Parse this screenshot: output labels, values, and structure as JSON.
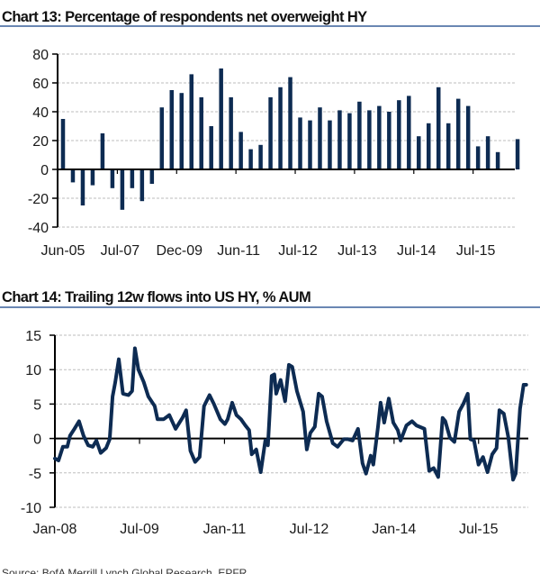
{
  "source": "Source: BofA Merrill Lynch Global Research, EPFR",
  "colors": {
    "series": "#0d2b52",
    "title_rule": "#6a87b3",
    "grid": "#bdbdbd",
    "axis": "#000000"
  },
  "chart_data": [
    {
      "type": "bar",
      "title": "Chart 13: Percentage of respondents net overweight HY",
      "xlabel": "",
      "ylabel": "",
      "ylim": [
        -40,
        80
      ],
      "yticks": [
        80,
        60,
        40,
        20,
        0,
        -20,
        -40
      ],
      "x_tick_labels": [
        "Jun-05",
        "Jul-07",
        "Dec-09",
        "Jun-11",
        "Jul-12",
        "Jul-13",
        "Jul-14",
        "Jul-15"
      ],
      "grid": "horizontal dashed",
      "values": [
        35,
        -9,
        -25,
        -11,
        25,
        -13,
        -28,
        -13,
        -22,
        -10,
        43,
        55,
        53,
        66,
        50,
        30,
        70,
        50,
        26,
        14,
        17,
        50,
        57,
        64,
        36,
        34,
        43,
        34,
        41,
        39,
        47,
        41,
        44,
        40,
        48,
        51,
        23,
        32,
        57,
        32,
        49,
        44,
        16,
        23,
        12,
        null,
        21
      ]
    },
    {
      "type": "line",
      "title": "Chart 14: Trailing 12w flows into US HY, % AUM",
      "xlabel": "",
      "ylabel": "",
      "ylim": [
        -10,
        15
      ],
      "yticks": [
        15,
        10,
        5,
        0,
        -5,
        -10
      ],
      "x_tick_labels": [
        "Jan-08",
        "Jul-09",
        "Jan-11",
        "Jul-12",
        "Jan-14",
        "Jul-15"
      ],
      "x_tick_dates": [
        "2008-01-01",
        "2009-07-01",
        "2011-01-01",
        "2012-07-01",
        "2014-01-01",
        "2015-07-01"
      ],
      "grid": "horizontal dashed",
      "points": [
        [
          "2008-01-01",
          -2.9
        ],
        [
          "2008-01-24",
          -3.2
        ],
        [
          "2008-02-22",
          -1.2
        ],
        [
          "2008-03-21",
          -1.2
        ],
        [
          "2008-04-08",
          0.4
        ],
        [
          "2008-05-06",
          1.4
        ],
        [
          "2008-06-05",
          2.5
        ],
        [
          "2008-07-04",
          0.4
        ],
        [
          "2008-08-03",
          -1.0
        ],
        [
          "2008-09-02",
          -1.2
        ],
        [
          "2008-09-25",
          -0.3
        ],
        [
          "2008-10-23",
          -2.1
        ],
        [
          "2008-11-27",
          -1.4
        ],
        [
          "2008-12-20",
          -0.1
        ],
        [
          "2009-01-08",
          6.1
        ],
        [
          "2009-01-25",
          8.2
        ],
        [
          "2009-02-17",
          11.5
        ],
        [
          "2009-03-16",
          6.5
        ],
        [
          "2009-04-20",
          6.3
        ],
        [
          "2009-05-14",
          6.9
        ],
        [
          "2009-06-01",
          13.1
        ],
        [
          "2009-06-24",
          10.0
        ],
        [
          "2009-07-28",
          8.2
        ],
        [
          "2009-08-27",
          6.1
        ],
        [
          "2009-10-07",
          4.7
        ],
        [
          "2009-10-25",
          2.8
        ],
        [
          "2009-12-04",
          2.8
        ],
        [
          "2010-01-09",
          3.4
        ],
        [
          "2010-02-19",
          1.4
        ],
        [
          "2010-04-04",
          3.0
        ],
        [
          "2010-04-28",
          4.1
        ],
        [
          "2010-05-26",
          -1.8
        ],
        [
          "2010-06-25",
          -3.4
        ],
        [
          "2010-07-24",
          -2.7
        ],
        [
          "2010-08-22",
          4.7
        ],
        [
          "2010-09-26",
          6.3
        ],
        [
          "2010-10-25",
          5.0
        ],
        [
          "2010-12-05",
          2.8
        ],
        [
          "2011-01-04",
          2.1
        ],
        [
          "2011-01-22",
          2.8
        ],
        [
          "2011-02-20",
          5.2
        ],
        [
          "2011-03-19",
          3.4
        ],
        [
          "2011-04-17",
          2.8
        ],
        [
          "2011-05-16",
          1.9
        ],
        [
          "2011-06-09",
          1.2
        ],
        [
          "2011-06-26",
          -2.3
        ],
        [
          "2011-07-25",
          -1.6
        ],
        [
          "2011-08-23",
          -4.9
        ],
        [
          "2011-09-22",
          -0.3
        ],
        [
          "2011-10-09",
          -1.0
        ],
        [
          "2011-11-02",
          9.1
        ],
        [
          "2011-11-19",
          9.3
        ],
        [
          "2011-12-01",
          6.5
        ],
        [
          "2011-12-30",
          8.5
        ],
        [
          "2012-01-28",
          5.4
        ],
        [
          "2012-02-21",
          10.7
        ],
        [
          "2012-03-14",
          10.4
        ],
        [
          "2012-04-13",
          6.9
        ],
        [
          "2012-05-23",
          3.9
        ],
        [
          "2012-06-16",
          -1.6
        ],
        [
          "2012-07-09",
          0.8
        ],
        [
          "2012-08-07",
          1.7
        ],
        [
          "2012-09-01",
          6.5
        ],
        [
          "2012-09-23",
          6.1
        ],
        [
          "2012-10-22",
          2.5
        ],
        [
          "2012-12-01",
          -0.7
        ],
        [
          "2013-01-01",
          -1.2
        ],
        [
          "2013-02-10",
          -0.1
        ],
        [
          "2013-03-10",
          -0.1
        ],
        [
          "2013-04-08",
          -0.3
        ],
        [
          "2013-05-13",
          1.4
        ],
        [
          "2013-06-11",
          -3.6
        ],
        [
          "2013-07-04",
          -5.1
        ],
        [
          "2013-08-03",
          -2.5
        ],
        [
          "2013-08-20",
          -3.8
        ],
        [
          "2013-09-19",
          1.7
        ],
        [
          "2013-10-06",
          5.2
        ],
        [
          "2013-10-29",
          2.3
        ],
        [
          "2013-11-28",
          5.8
        ],
        [
          "2013-12-27",
          2.3
        ],
        [
          "2014-01-25",
          1.2
        ],
        [
          "2014-02-12",
          -0.3
        ],
        [
          "2014-03-22",
          1.9
        ],
        [
          "2014-04-27",
          2.5
        ],
        [
          "2014-05-25",
          1.9
        ],
        [
          "2014-07-16",
          1.4
        ],
        [
          "2014-08-16",
          -4.7
        ],
        [
          "2014-09-14",
          -4.3
        ],
        [
          "2014-10-13",
          -5.6
        ],
        [
          "2014-11-11",
          3.0
        ],
        [
          "2014-11-28",
          2.5
        ],
        [
          "2014-12-28",
          0.1
        ],
        [
          "2015-01-26",
          -0.5
        ],
        [
          "2015-02-25",
          3.9
        ],
        [
          "2015-03-24",
          5.0
        ],
        [
          "2015-04-22",
          6.5
        ],
        [
          "2015-05-09",
          -0.1
        ],
        [
          "2015-06-02",
          -0.3
        ],
        [
          "2015-07-01",
          -3.8
        ],
        [
          "2015-07-30",
          -2.7
        ],
        [
          "2015-08-28",
          -4.9
        ],
        [
          "2015-09-27",
          -2.3
        ],
        [
          "2015-10-25",
          -1.4
        ],
        [
          "2015-11-13",
          4.1
        ],
        [
          "2015-12-11",
          3.6
        ],
        [
          "2016-01-10",
          0.1
        ],
        [
          "2016-02-09",
          -6.0
        ],
        [
          "2016-02-26",
          -5.1
        ],
        [
          "2016-03-25",
          4.3
        ],
        [
          "2016-04-17",
          7.8
        ],
        [
          "2016-05-04",
          7.8
        ]
      ]
    }
  ]
}
